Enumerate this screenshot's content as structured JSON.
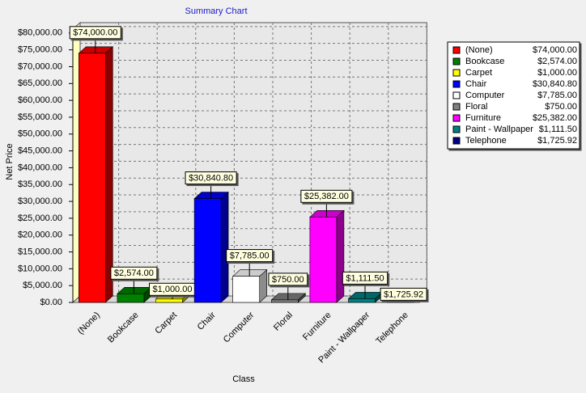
{
  "chart_data": {
    "type": "bar3d",
    "title": "Summary Chart",
    "x_label": "Class",
    "y_label": "Net Price",
    "categories": [
      "(None)",
      "Bookcase",
      "Carpet",
      "Chair",
      "Computer",
      "Floral",
      "Furniture",
      "Paint - Wallpaper",
      "Telephone"
    ],
    "values": [
      74000,
      2574,
      1000,
      30840.8,
      7785,
      750,
      25382,
      1111.5,
      1725.92
    ],
    "value_labels": [
      "$74,000.00",
      "$2,574.00",
      "$1,000.00",
      "$30,840.80",
      "$7,785.00",
      "$750.00",
      "$25,382.00",
      "$1,111.50",
      "$1,725.92"
    ],
    "colors": [
      "#ff0000",
      "#008000",
      "#ffff00",
      "#0000ff",
      "#ffffff",
      "#808080",
      "#ff00ff",
      "#008080",
      "#000080"
    ],
    "ylim": [
      0,
      85000
    ],
    "yticks": [
      {
        "value": 0,
        "label": "$0.00"
      },
      {
        "value": 5000,
        "label": "$5,000.00"
      },
      {
        "value": 10000,
        "label": "$10,000.00"
      },
      {
        "value": 15000,
        "label": "$15,000.00"
      },
      {
        "value": 20000,
        "label": "$20,000.00"
      },
      {
        "value": 25000,
        "label": "$25,000.00"
      },
      {
        "value": 30000,
        "label": "$30,000.00"
      },
      {
        "value": 35000,
        "label": "$35,000.00"
      },
      {
        "value": 40000,
        "label": "$40,000.00"
      },
      {
        "value": 45000,
        "label": "$45,000.00"
      },
      {
        "value": 50000,
        "label": "$50,000.00"
      },
      {
        "value": 55000,
        "label": "$55,000.00"
      },
      {
        "value": 60000,
        "label": "$60,000.00"
      },
      {
        "value": 65000,
        "label": "$65,000.00"
      },
      {
        "value": 70000,
        "label": "$70,000.00"
      },
      {
        "value": 75000,
        "label": "$75,000.00"
      },
      {
        "value": 80000,
        "label": "$80,000.00"
      }
    ],
    "grid": true,
    "legend": "right"
  }
}
